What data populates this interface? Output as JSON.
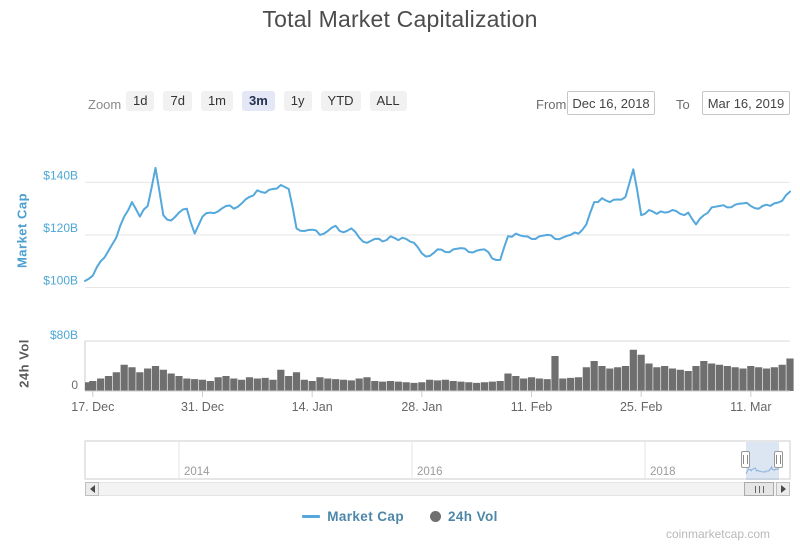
{
  "page": {
    "title": "Total Market Capitalization",
    "watermark": "coinmarketcap.com"
  },
  "toolbar": {
    "zoom_label": "Zoom",
    "zoom_buttons": [
      "1d",
      "7d",
      "1m",
      "3m",
      "1y",
      "YTD",
      "ALL"
    ],
    "selected_zoom": "3m",
    "from_label": "From",
    "from_value": "Dec 16, 2018",
    "to_label": "To",
    "to_value": "Mar 16, 2019"
  },
  "legend": {
    "items": [
      {
        "label": "Market Cap",
        "marker": "line"
      },
      {
        "label": "24h Vol",
        "marker": "circle"
      }
    ]
  },
  "colors": {
    "market_cap_line": "#54a8dc",
    "volume_fill": "#6f6f6f",
    "axis_label_blue": "#4da7d8",
    "axis_label_gray": "#6e6e6e",
    "gridline": "#e6e6e6",
    "axis_line": "#cccccc",
    "selected_button_bg": "#e4e7f5",
    "legend_text": "#4d87a8"
  },
  "chart_data": {
    "type": "line+column",
    "title": "Total Market Capitalization",
    "x_start": "2018-12-16",
    "x_end": "2019-03-16",
    "interval": "1 day",
    "x_ticks": [
      {
        "day": 1,
        "label": "17. Dec"
      },
      {
        "day": 15,
        "label": "31. Dec"
      },
      {
        "day": 29,
        "label": "14. Jan"
      },
      {
        "day": 43,
        "label": "28. Jan"
      },
      {
        "day": 57,
        "label": "11. Feb"
      },
      {
        "day": 71,
        "label": "25. Feb"
      },
      {
        "day": 85,
        "label": "11. Mar"
      }
    ],
    "panes": [
      {
        "name": "Market Cap",
        "type": "line",
        "axis_title": "Market Cap",
        "ylim": [
          98,
          150
        ],
        "y_ticks": [
          {
            "v": 100,
            "label": "$100B"
          },
          {
            "v": 120,
            "label": "$120B"
          },
          {
            "v": 140,
            "label": "$140B"
          }
        ]
      },
      {
        "name": "24h Vol",
        "type": "column",
        "axis_title": "24h Vol",
        "ylim": [
          0,
          80
        ],
        "y_ticks": [
          {
            "v": 0,
            "label": "0",
            "muted": true
          },
          {
            "v": 80,
            "label": "$80B"
          }
        ]
      }
    ],
    "series": [
      {
        "name": "Market Cap",
        "unit": "USD billions",
        "values": [
          102.5,
          104.5,
          110,
          114,
          119,
          127,
          132.5,
          127,
          131,
          145.5,
          127.5,
          125.5,
          128.5,
          130,
          120.5,
          127,
          128.5,
          129,
          131,
          130,
          132,
          134.5,
          137,
          136,
          137.5,
          139,
          137.5,
          122.5,
          121.5,
          122,
          120,
          121.5,
          123.5,
          121,
          122.5,
          119,
          117,
          118.5,
          117.5,
          119.5,
          118,
          118.5,
          117,
          113,
          112,
          114.5,
          113.5,
          114.5,
          115,
          113.5,
          114,
          114.5,
          111,
          110.5,
          119.5,
          120.5,
          119.5,
          118.5,
          119.5,
          120,
          118.5,
          119,
          120,
          120.5,
          124,
          132.5,
          134,
          132.5,
          133.5,
          134.5,
          145,
          127.5,
          129.5,
          128,
          128.5,
          129.5,
          128,
          128.5,
          124,
          127.5,
          130.5,
          131,
          130.5,
          131.5,
          132,
          131,
          130,
          131.5,
          132,
          133,
          136.5
        ]
      },
      {
        "name": "24h Vol",
        "unit": "USD billions",
        "values": [
          14,
          16,
          20,
          24,
          30,
          42,
          38,
          30,
          36,
          40,
          34,
          28,
          24,
          20,
          19,
          18,
          16,
          22,
          24,
          20,
          18,
          22,
          20,
          21,
          18,
          34,
          24,
          30,
          18,
          16,
          22,
          20,
          19,
          18,
          17,
          20,
          22,
          16,
          15,
          16,
          15,
          14,
          13,
          14,
          18,
          17,
          18,
          16,
          15,
          14,
          13,
          14,
          15,
          16,
          28,
          24,
          20,
          22,
          20,
          19,
          56,
          20,
          21,
          22,
          38,
          48,
          40,
          36,
          38,
          40,
          66,
          58,
          44,
          38,
          40,
          36,
          34,
          32,
          40,
          48,
          44,
          42,
          40,
          38,
          36,
          40,
          38,
          36,
          38,
          42,
          52
        ]
      }
    ],
    "navigator": {
      "year_labels": [
        "2014",
        "2016",
        "2018"
      ],
      "range_start": "2013",
      "range_end": "2019",
      "selection_start": "Dec 16, 2018",
      "selection_end": "Mar 16, 2019"
    }
  }
}
